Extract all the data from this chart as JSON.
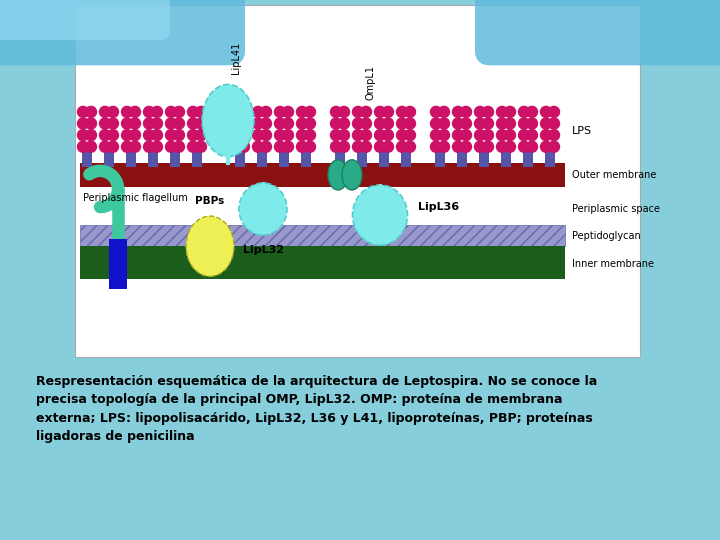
{
  "bg_color": "#87CEDC",
  "panel_bg": "#ffffff",
  "outer_mem_color": "#8B1010",
  "inner_mem_color": "#1B5E1B",
  "peptido_color": "#8888CC",
  "lps_stem_color": "#5555AA",
  "lps_ball_color": "#CC1166",
  "lipl_fill": "#7EEAEA",
  "ompl1_fill": "#2BAA88",
  "flag_color": "#3DC8A0",
  "pbp_color": "#EEEE55",
  "flag_base_color": "#1111CC",
  "caption_line1": "Respresentación esquemática de la arquitectura de Leptospira. No se conoce la",
  "caption_line2": "precisa topología de la principal OMP, LipL32. OMP: proteína de membrana",
  "caption_line3": "externa; LPS: lipopolisacárido, LipL32, L36 y L41, lipoproteínas, PBP; proteínas",
  "caption_line4": "ligadoras de penicilina"
}
